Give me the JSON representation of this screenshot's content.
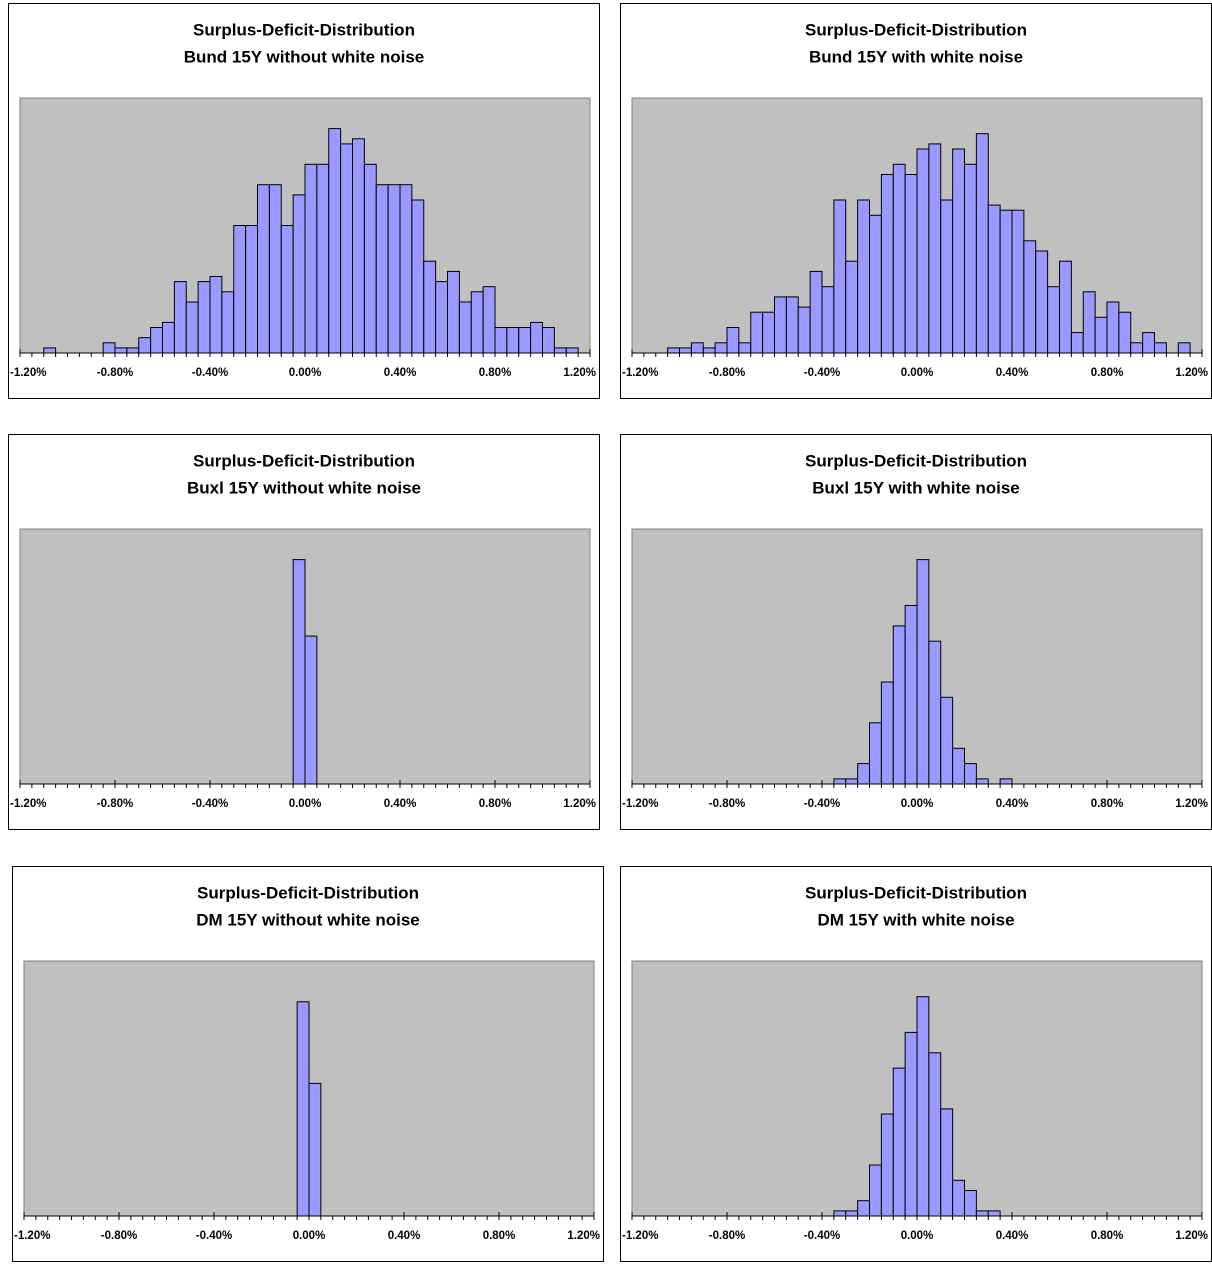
{
  "chart_data": [
    {
      "type": "histogram",
      "title": "Surplus-Deficit-Distribution",
      "subtitle": "Bund 15Y without white noise",
      "color": "#9999ff",
      "bins": [
        -1.2,
        -1.15,
        -1.1,
        -1.05,
        -1,
        -0.95,
        -0.9,
        -0.85,
        -0.8,
        -0.75,
        -0.7,
        -0.65,
        -0.6,
        -0.55,
        -0.5,
        -0.45,
        -0.4,
        -0.35,
        -0.3,
        -0.25,
        -0.2,
        -0.15,
        -0.1,
        -0.05,
        0,
        0.05,
        0.1,
        0.15,
        0.2,
        0.25,
        0.3,
        0.35,
        0.4,
        0.45,
        0.5,
        0.55,
        0.6,
        0.65,
        0.7,
        0.75,
        0.8,
        0.85,
        0.9,
        0.95,
        1,
        1.05,
        1.1,
        1.15,
        1.2
      ],
      "values": [
        0,
        0,
        1,
        0,
        0,
        0,
        0,
        2,
        1,
        1,
        3,
        5,
        6,
        14,
        10,
        14,
        15,
        12,
        25,
        25,
        33,
        33,
        25,
        31,
        37,
        37,
        44,
        41,
        42,
        37,
        33,
        33,
        33,
        30,
        18,
        14,
        16,
        10,
        12,
        13,
        5,
        5,
        5,
        6,
        5,
        1,
        1,
        0
      ],
      "xlim": [
        -1.2,
        1.2
      ],
      "ylim": [
        0,
        50
      ],
      "xticks": [
        {
          "value": -1.2,
          "label": "-1.20%"
        },
        {
          "value": -0.8,
          "label": "-0.80%"
        },
        {
          "value": -0.4,
          "label": "-0.40%"
        },
        {
          "value": 0,
          "label": "0.00%"
        },
        {
          "value": 0.4,
          "label": "0.40%"
        },
        {
          "value": 0.8,
          "label": "0.80%"
        },
        {
          "value": 1.2,
          "label": "1.20%"
        }
      ]
    },
    {
      "type": "histogram",
      "title": "Surplus-Deficit-Distribution",
      "subtitle": "Bund 15Y with white noise",
      "color": "#9999ff",
      "bins": [
        -1.2,
        -1.15,
        -1.1,
        -1.05,
        -1,
        -0.95,
        -0.9,
        -0.85,
        -0.8,
        -0.75,
        -0.7,
        -0.65,
        -0.6,
        -0.55,
        -0.5,
        -0.45,
        -0.4,
        -0.35,
        -0.3,
        -0.25,
        -0.2,
        -0.15,
        -0.1,
        -0.05,
        0,
        0.05,
        0.1,
        0.15,
        0.2,
        0.25,
        0.3,
        0.35,
        0.4,
        0.45,
        0.5,
        0.55,
        0.6,
        0.65,
        0.7,
        0.75,
        0.8,
        0.85,
        0.9,
        0.95,
        1,
        1.05,
        1.1,
        1.15,
        1.2
      ],
      "values": [
        0,
        0,
        0,
        1,
        1,
        2,
        1,
        2,
        5,
        2,
        8,
        8,
        11,
        11,
        9,
        16,
        13,
        30,
        18,
        30,
        27,
        35,
        37,
        35,
        40,
        41,
        30,
        40,
        37,
        43,
        29,
        28,
        28,
        22,
        20,
        13,
        18,
        4,
        12,
        7,
        10,
        8,
        2,
        4,
        2,
        0,
        2,
        0
      ],
      "xlim": [
        -1.2,
        1.2
      ],
      "ylim": [
        0,
        50
      ],
      "xticks": [
        {
          "value": -1.2,
          "label": "-1.20%"
        },
        {
          "value": -0.8,
          "label": "-0.80%"
        },
        {
          "value": -0.4,
          "label": "-0.40%"
        },
        {
          "value": 0,
          "label": "0.00%"
        },
        {
          "value": 0.4,
          "label": "0.40%"
        },
        {
          "value": 0.8,
          "label": "0.80%"
        },
        {
          "value": 1.2,
          "label": "1.20%"
        }
      ]
    },
    {
      "type": "histogram",
      "title": "Surplus-Deficit-Distribution",
      "subtitle": "Buxl 15Y without white noise",
      "color": "#9999ff",
      "bins": [
        -1.2,
        -1.15,
        -1.1,
        -1.05,
        -1,
        -0.95,
        -0.9,
        -0.85,
        -0.8,
        -0.75,
        -0.7,
        -0.65,
        -0.6,
        -0.55,
        -0.5,
        -0.45,
        -0.4,
        -0.35,
        -0.3,
        -0.25,
        -0.2,
        -0.15,
        -0.1,
        -0.05,
        0,
        0.05,
        0.1,
        0.15,
        0.2,
        0.25,
        0.3,
        0.35,
        0.4,
        0.45,
        0.5,
        0.55,
        0.6,
        0.65,
        0.7,
        0.75,
        0.8,
        0.85,
        0.9,
        0.95,
        1,
        1.05,
        1.1,
        1.15,
        1.2
      ],
      "values": [
        0,
        0,
        0,
        0,
        0,
        0,
        0,
        0,
        0,
        0,
        0,
        0,
        0,
        0,
        0,
        0,
        0,
        0,
        0,
        0,
        0,
        0,
        0,
        44,
        29,
        0,
        0,
        0,
        0,
        0,
        0,
        0,
        0,
        0,
        0,
        0,
        0,
        0,
        0,
        0,
        0,
        0,
        0,
        0,
        0,
        0,
        0,
        0
      ],
      "xlim": [
        -1.2,
        1.2
      ],
      "ylim": [
        0,
        50
      ],
      "xticks": [
        {
          "value": -1.2,
          "label": "-1.20%"
        },
        {
          "value": -0.8,
          "label": "-0.80%"
        },
        {
          "value": -0.4,
          "label": "-0.40%"
        },
        {
          "value": 0,
          "label": "0.00%"
        },
        {
          "value": 0.4,
          "label": "0.40%"
        },
        {
          "value": 0.8,
          "label": "0.80%"
        },
        {
          "value": 1.2,
          "label": "1.20%"
        }
      ]
    },
    {
      "type": "histogram",
      "title": "Surplus-Deficit-Distribution",
      "subtitle": "Buxl 15Y with white noise",
      "color": "#9999ff",
      "bins": [
        -1.2,
        -1.15,
        -1.1,
        -1.05,
        -1,
        -0.95,
        -0.9,
        -0.85,
        -0.8,
        -0.75,
        -0.7,
        -0.65,
        -0.6,
        -0.55,
        -0.5,
        -0.45,
        -0.4,
        -0.35,
        -0.3,
        -0.25,
        -0.2,
        -0.15,
        -0.1,
        -0.05,
        0,
        0.05,
        0.1,
        0.15,
        0.2,
        0.25,
        0.3,
        0.35,
        0.4,
        0.45,
        0.5,
        0.55,
        0.6,
        0.65,
        0.7,
        0.75,
        0.8,
        0.85,
        0.9,
        0.95,
        1,
        1.05,
        1.1,
        1.15,
        1.2
      ],
      "values": [
        0,
        0,
        0,
        0,
        0,
        0,
        0,
        0,
        0,
        0,
        0,
        0,
        0,
        0,
        0,
        0,
        0,
        1,
        1,
        4,
        12,
        20,
        31,
        35,
        44,
        28,
        17,
        7,
        4,
        1,
        0,
        1,
        0,
        0,
        0,
        0,
        0,
        0,
        0,
        0,
        0,
        0,
        0,
        0,
        0,
        0,
        0,
        0
      ],
      "xlim": [
        -1.2,
        1.2
      ],
      "ylim": [
        0,
        50
      ],
      "xticks": [
        {
          "value": -1.2,
          "label": "-1.20%"
        },
        {
          "value": -0.8,
          "label": "-0.80%"
        },
        {
          "value": -0.4,
          "label": "-0.40%"
        },
        {
          "value": 0,
          "label": "0.00%"
        },
        {
          "value": 0.4,
          "label": "0.40%"
        },
        {
          "value": 0.8,
          "label": "0.80%"
        },
        {
          "value": 1.2,
          "label": "1.20%"
        }
      ]
    },
    {
      "type": "histogram",
      "title": "Surplus-Deficit-Distribution",
      "subtitle": "DM 15Y without white noise",
      "color": "#9999ff",
      "bins": [
        -1.2,
        -1.15,
        -1.1,
        -1.05,
        -1,
        -0.95,
        -0.9,
        -0.85,
        -0.8,
        -0.75,
        -0.7,
        -0.65,
        -0.6,
        -0.55,
        -0.5,
        -0.45,
        -0.4,
        -0.35,
        -0.3,
        -0.25,
        -0.2,
        -0.15,
        -0.1,
        -0.05,
        0,
        0.05,
        0.1,
        0.15,
        0.2,
        0.25,
        0.3,
        0.35,
        0.4,
        0.45,
        0.5,
        0.55,
        0.6,
        0.65,
        0.7,
        0.75,
        0.8,
        0.85,
        0.9,
        0.95,
        1,
        1.05,
        1.1,
        1.15,
        1.2
      ],
      "values": [
        0,
        0,
        0,
        0,
        0,
        0,
        0,
        0,
        0,
        0,
        0,
        0,
        0,
        0,
        0,
        0,
        0,
        0,
        0,
        0,
        0,
        0,
        0,
        42,
        26,
        0,
        0,
        0,
        0,
        0,
        0,
        0,
        0,
        0,
        0,
        0,
        0,
        0,
        0,
        0,
        0,
        0,
        0,
        0,
        0,
        0,
        0,
        0
      ],
      "xlim": [
        -1.2,
        1.2
      ],
      "ylim": [
        0,
        50
      ],
      "xticks": [
        {
          "value": -1.2,
          "label": "-1.20%"
        },
        {
          "value": -0.8,
          "label": "-0.80%"
        },
        {
          "value": -0.4,
          "label": "-0.40%"
        },
        {
          "value": 0,
          "label": "0.00%"
        },
        {
          "value": 0.4,
          "label": "0.40%"
        },
        {
          "value": 0.8,
          "label": "0.80%"
        },
        {
          "value": 1.2,
          "label": "1.20%"
        }
      ]
    },
    {
      "type": "histogram",
      "title": "Surplus-Deficit-Distribution",
      "subtitle": "DM 15Y with white noise",
      "color": "#9999ff",
      "bins": [
        -1.2,
        -1.15,
        -1.1,
        -1.05,
        -1,
        -0.95,
        -0.9,
        -0.85,
        -0.8,
        -0.75,
        -0.7,
        -0.65,
        -0.6,
        -0.55,
        -0.5,
        -0.45,
        -0.4,
        -0.35,
        -0.3,
        -0.25,
        -0.2,
        -0.15,
        -0.1,
        -0.05,
        0,
        0.05,
        0.1,
        0.15,
        0.2,
        0.25,
        0.3,
        0.35,
        0.4,
        0.45,
        0.5,
        0.55,
        0.6,
        0.65,
        0.7,
        0.75,
        0.8,
        0.85,
        0.9,
        0.95,
        1,
        1.05,
        1.1,
        1.15,
        1.2
      ],
      "values": [
        0,
        0,
        0,
        0,
        0,
        0,
        0,
        0,
        0,
        0,
        0,
        0,
        0,
        0,
        0,
        0,
        0,
        1,
        1,
        3,
        10,
        20,
        29,
        36,
        43,
        32,
        21,
        7,
        5,
        1,
        1,
        0,
        0,
        0,
        0,
        0,
        0,
        0,
        0,
        0,
        0,
        0,
        0,
        0,
        0,
        0,
        0,
        0
      ],
      "xlim": [
        -1.2,
        1.2
      ],
      "ylim": [
        0,
        50
      ],
      "xticks": [
        {
          "value": -1.2,
          "label": "-1.20%"
        },
        {
          "value": -0.8,
          "label": "-0.80%"
        },
        {
          "value": -0.4,
          "label": "-0.40%"
        },
        {
          "value": 0,
          "label": "0.00%"
        },
        {
          "value": 0.4,
          "label": "0.40%"
        },
        {
          "value": 0.8,
          "label": "0.80%"
        },
        {
          "value": 1.2,
          "label": "1.20%"
        }
      ]
    }
  ]
}
